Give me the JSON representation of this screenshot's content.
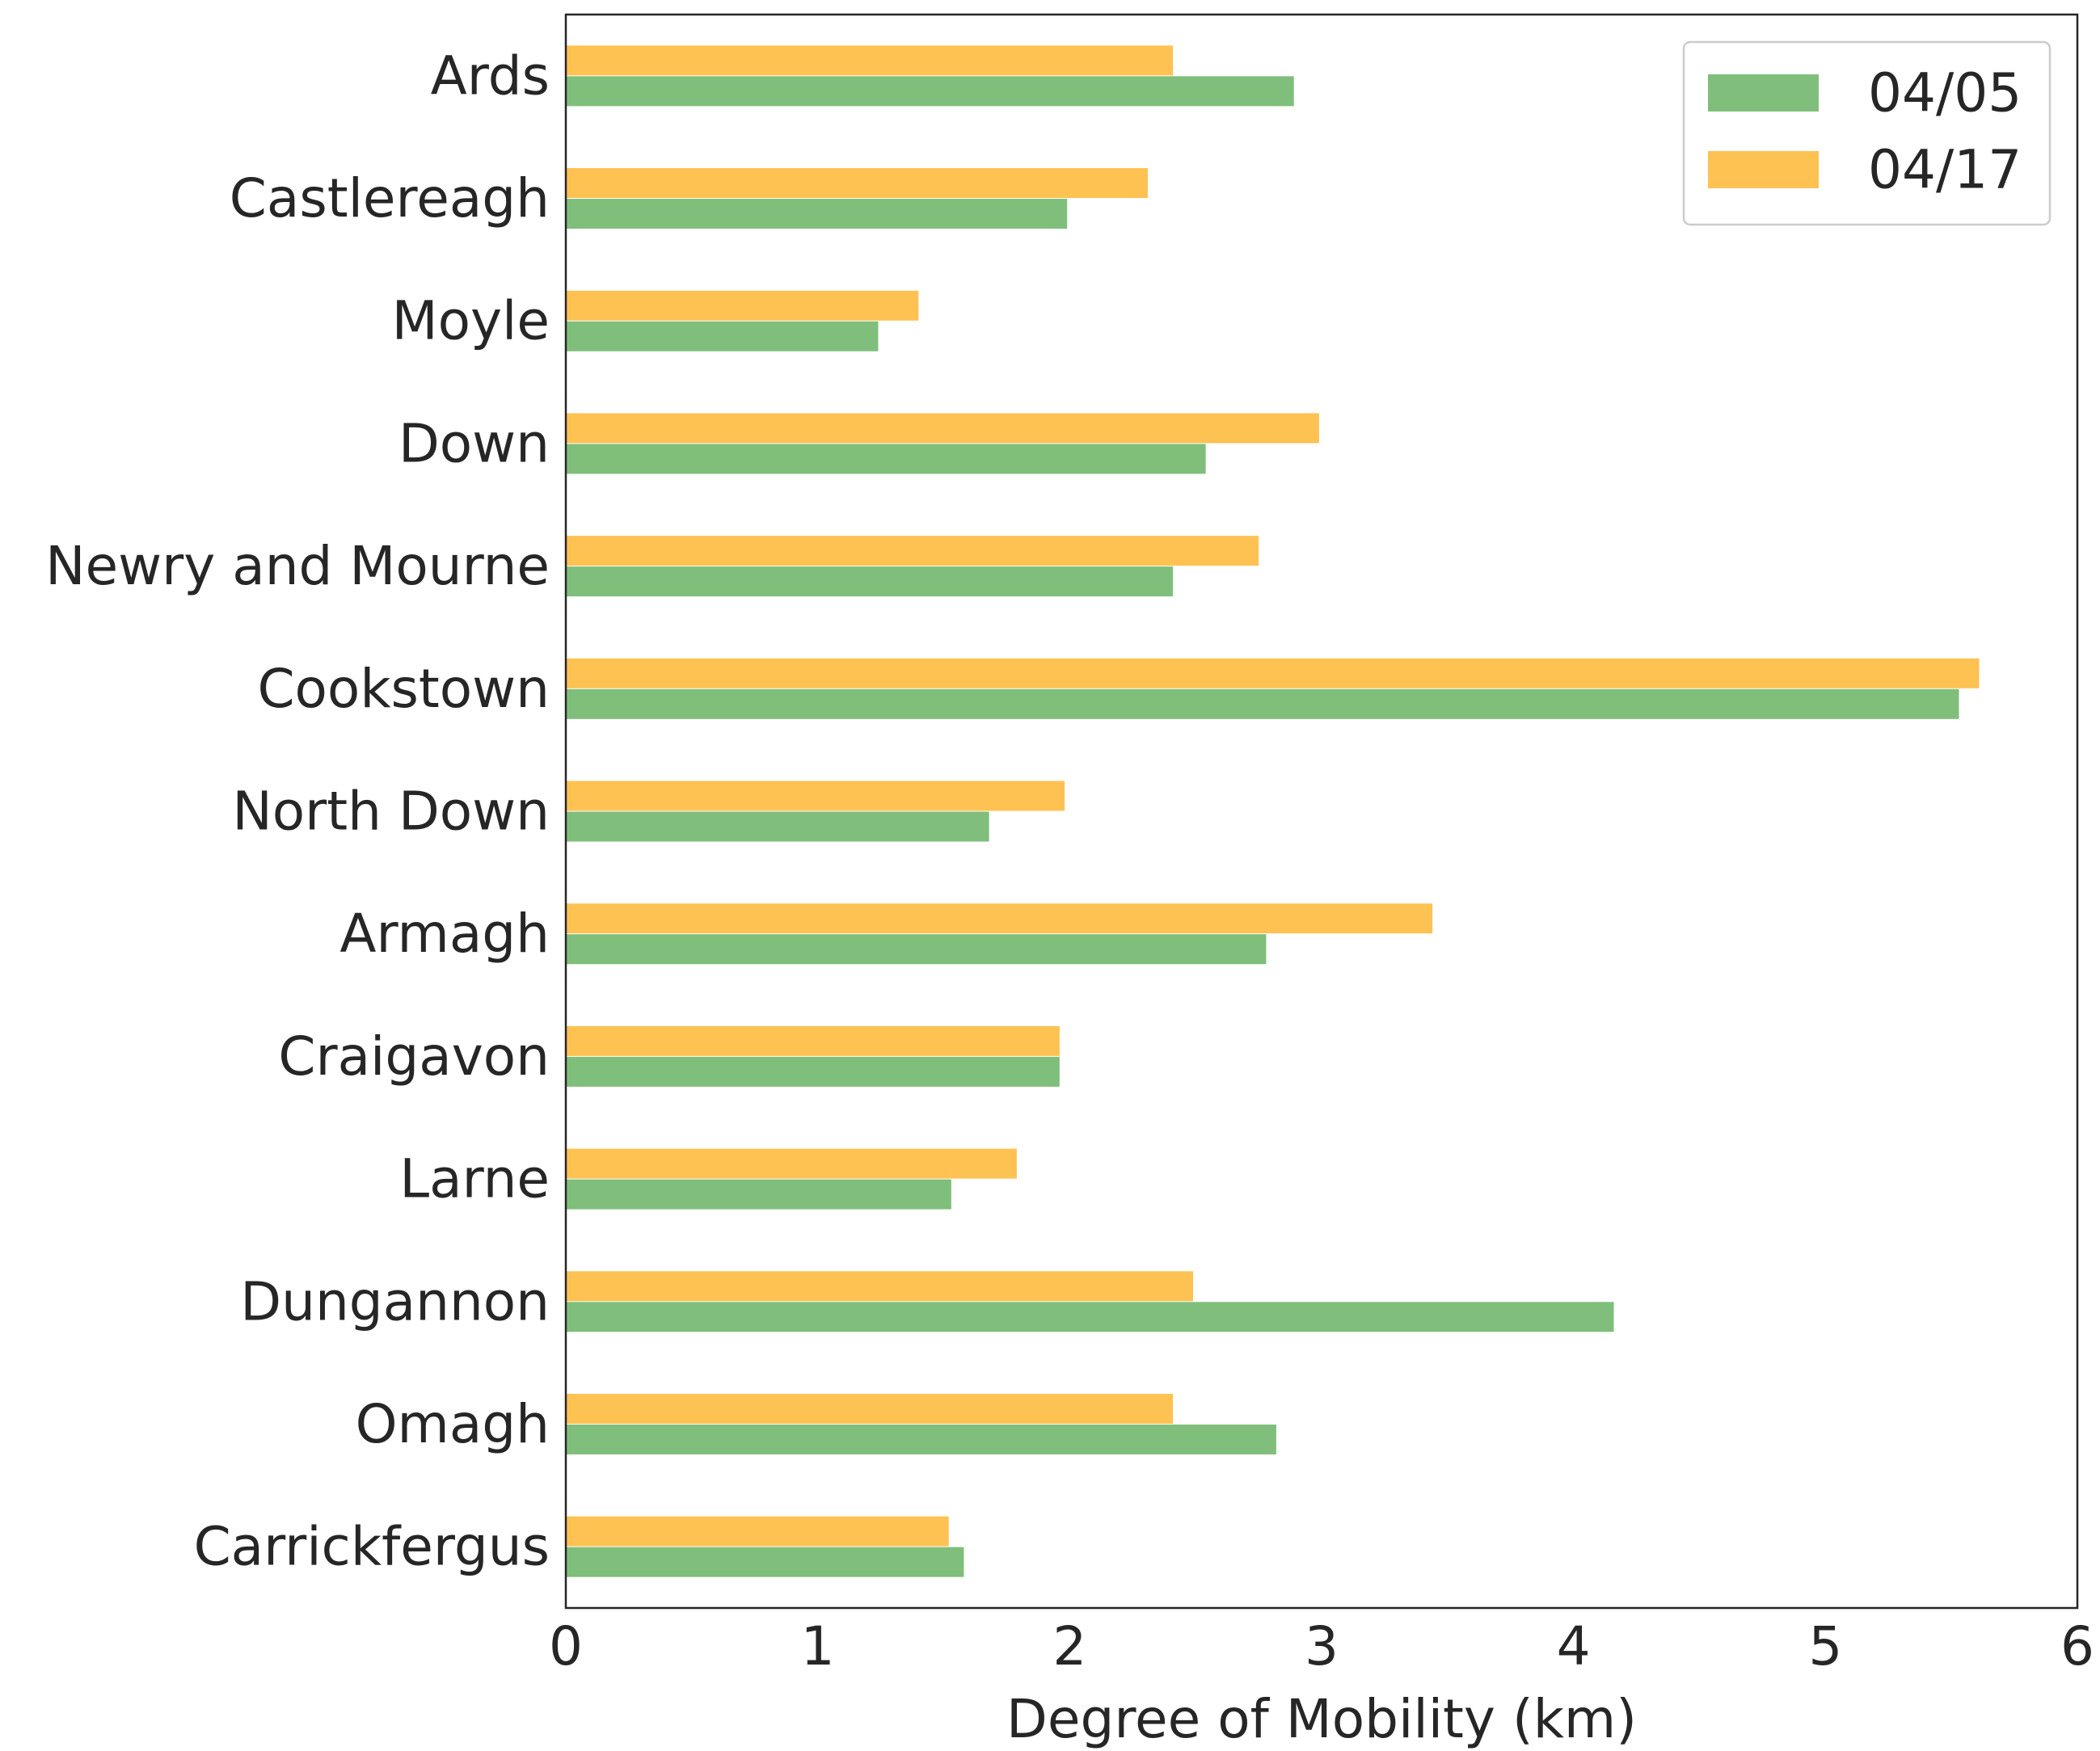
{
  "chart_data": {
    "type": "bar",
    "orientation": "horizontal",
    "categories": [
      "Ards",
      "Castlereagh",
      "Moyle",
      "Down",
      "Newry and Mourne",
      "Cookstown",
      "North Down",
      "Armagh",
      "Craigavon",
      "Larne",
      "Dungannon",
      "Omagh",
      "Carrickfergus"
    ],
    "series": [
      {
        "name": "04/05",
        "color": "#7fbf7b",
        "values": [
          2.89,
          1.99,
          1.24,
          2.54,
          2.41,
          5.53,
          1.68,
          2.78,
          1.96,
          1.53,
          4.16,
          2.82,
          1.58
        ]
      },
      {
        "name": "04/17",
        "color": "#fec253",
        "values": [
          2.41,
          2.31,
          1.4,
          2.99,
          2.75,
          5.61,
          1.98,
          3.44,
          1.96,
          1.79,
          2.49,
          2.41,
          1.52
        ]
      }
    ],
    "xlabel": "Degree of Mobility (km)",
    "ylabel": "",
    "xlim": [
      0,
      6
    ],
    "xticks": [
      "0",
      "1",
      "2",
      "3",
      "4",
      "5",
      "6"
    ],
    "grid": false,
    "legend_position": "top-right"
  }
}
